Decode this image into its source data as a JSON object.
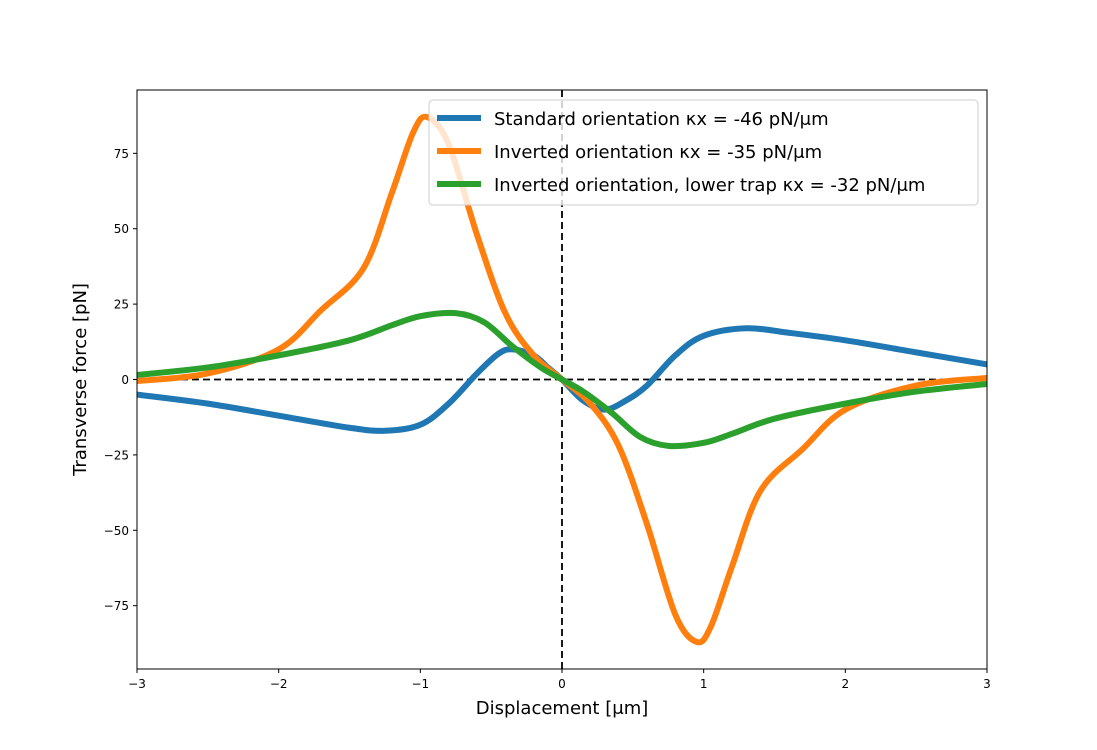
{
  "chart_data": {
    "type": "line",
    "xlabel": "Displacement [μm]",
    "ylabel": "Transverse force [pN]",
    "xlim": [
      -3,
      3
    ],
    "ylim": [
      -96,
      96
    ],
    "x_ticks": [
      -3,
      -2,
      -1,
      0,
      1,
      2,
      3
    ],
    "x_tick_labels": [
      "−3",
      "−2",
      "−1",
      "0",
      "1",
      "2",
      "3"
    ],
    "y_ticks": [
      -75,
      -50,
      -25,
      0,
      25,
      50,
      75
    ],
    "y_tick_labels": [
      "−75",
      "−50",
      "−25",
      "0",
      "25",
      "50",
      "75"
    ],
    "grid": false,
    "legend_position": "top-right",
    "reference_lines": {
      "horizontal": 0,
      "vertical": 0,
      "style": "dashed black"
    },
    "series": [
      {
        "name": "Standard orientation κx = -46 pN/μm",
        "color": "#1f77b4",
        "x": [
          -3.0,
          -2.5,
          -2.0,
          -1.5,
          -1.25,
          -1.0,
          -0.8,
          -0.6,
          -0.45,
          -0.35,
          -0.2,
          -0.1,
          0.0,
          0.15,
          0.3,
          0.45,
          0.6,
          0.8,
          1.0,
          1.3,
          1.6,
          2.0,
          2.5,
          3.0
        ],
        "y": [
          -5,
          -8,
          -12,
          -16,
          -17,
          -15,
          -8,
          2,
          8.5,
          10,
          8,
          4,
          0,
          -7,
          -10,
          -7,
          -2,
          8,
          14.5,
          17,
          15.5,
          13,
          9,
          5
        ]
      },
      {
        "name": "Inverted orientation κx = -35 pN/μm",
        "color": "#ff7f0e",
        "x": [
          -3.0,
          -2.5,
          -2.0,
          -1.7,
          -1.4,
          -1.2,
          -1.05,
          -0.95,
          -0.8,
          -0.6,
          -0.4,
          -0.2,
          0.0,
          0.2,
          0.4,
          0.6,
          0.8,
          0.95,
          1.05,
          1.2,
          1.4,
          1.7,
          2.0,
          2.5,
          3.0
        ],
        "y": [
          -0.5,
          2,
          10,
          23,
          37,
          62,
          82,
          87,
          78,
          48,
          22,
          8,
          0,
          -8,
          -22,
          -48,
          -78,
          -87,
          -82,
          -62,
          -37,
          -23,
          -10,
          -2,
          0.5
        ]
      },
      {
        "name": "Inverted orientation, lower trap κx = -32 pN/μm",
        "color": "#2ca02c",
        "x": [
          -3.0,
          -2.5,
          -2.0,
          -1.5,
          -1.2,
          -1.0,
          -0.75,
          -0.55,
          -0.35,
          -0.15,
          0.0,
          0.15,
          0.35,
          0.55,
          0.75,
          1.0,
          1.2,
          1.5,
          2.0,
          2.5,
          3.0
        ],
        "y": [
          1.5,
          4,
          8,
          13,
          18,
          21,
          22,
          19,
          11,
          4,
          0,
          -4,
          -11,
          -19,
          -22,
          -21,
          -18,
          -13,
          -8,
          -4,
          -1.5
        ]
      }
    ]
  }
}
